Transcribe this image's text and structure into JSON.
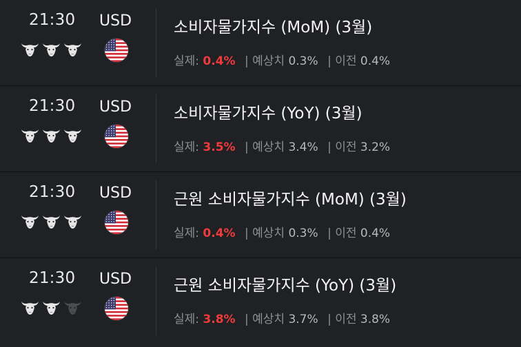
{
  "colors": {
    "background": "#1f2124",
    "actual_highlight": "#ef3b3b",
    "importance_active": "#e6e6e6",
    "importance_inactive": "#4a4c50"
  },
  "labels": {
    "actual": "실제:",
    "forecast": "| 예상치",
    "previous": "| 이전"
  },
  "events": [
    {
      "time": "21:30",
      "currency": "USD",
      "flag_icon": "us-flag-icon",
      "importance": 3,
      "title": "소비자물가지수 (MoM) (3월)",
      "actual": "0.4%",
      "forecast": "0.3%",
      "previous": "0.4%"
    },
    {
      "time": "21:30",
      "currency": "USD",
      "flag_icon": "us-flag-icon",
      "importance": 3,
      "title": "소비자물가지수 (YoY) (3월)",
      "actual": "3.5%",
      "forecast": "3.4%",
      "previous": "3.2%"
    },
    {
      "time": "21:30",
      "currency": "USD",
      "flag_icon": "us-flag-icon",
      "importance": 3,
      "title": "근원 소비자물가지수 (MoM) (3월)",
      "actual": "0.4%",
      "forecast": "0.3%",
      "previous": "0.4%"
    },
    {
      "time": "21:30",
      "currency": "USD",
      "flag_icon": "us-flag-icon",
      "importance": 2,
      "title": "근원 소비자물가지수 (YoY) (3월)",
      "actual": "3.8%",
      "forecast": "3.7%",
      "previous": "3.8%"
    }
  ]
}
